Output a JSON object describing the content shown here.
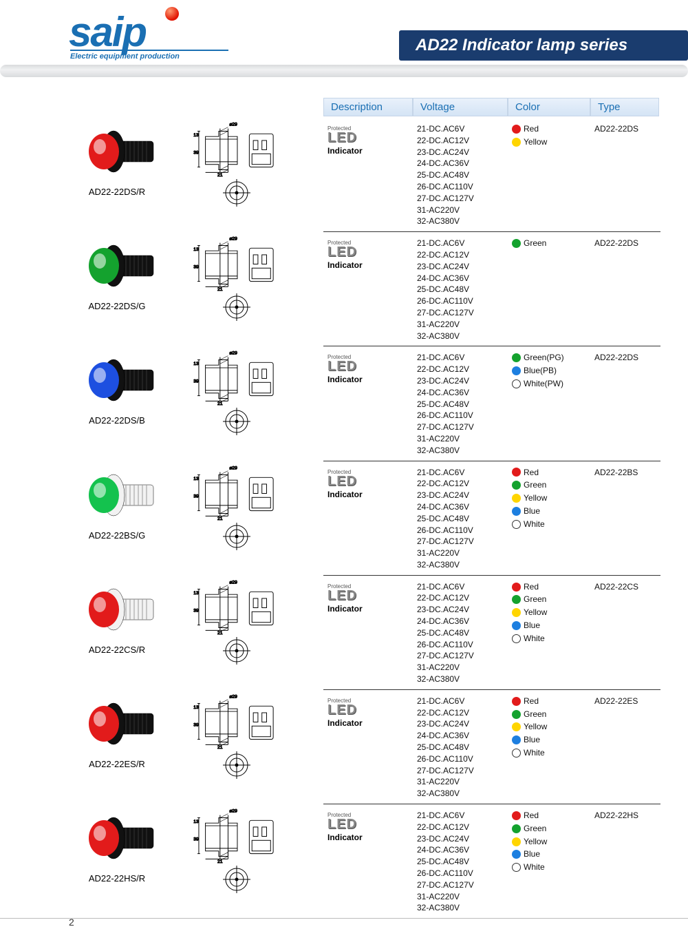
{
  "brand": {
    "logo_text": "saip",
    "tagline": "Electric equipment production",
    "logo_color": "#1a6fb3",
    "dot_color": "#e11300"
  },
  "page_title": "AD22 Indicator lamp series",
  "page_number": "2",
  "columns": {
    "description": "Description",
    "voltage": "Voltage",
    "color": "Color",
    "type": "Type"
  },
  "desc_block": {
    "small": "Protected",
    "led": "LED",
    "indicator": "Indicator"
  },
  "voltages": [
    "21-DC.AC6V",
    "22-DC.AC12V",
    "23-DC.AC24V",
    "24-DC.AC36V",
    "25-DC.AC48V",
    "26-DC.AC110V",
    "27-DC.AC127V",
    "31-AC220V",
    "32-AC380V"
  ],
  "color_swatch": {
    "Red": "#e21b1b",
    "Yellow": "#ffd500",
    "Green": "#14a22e",
    "Blue": "#1d7fe0",
    "White": "#ffffff"
  },
  "products": [
    {
      "model": "AD22-22DS/R",
      "type": "AD22-22DS",
      "body_color": "#111111",
      "lens_color": "#e21b1b",
      "colors": [
        {
          "label": "Red",
          "swatch": "#e21b1b",
          "border": false
        },
        {
          "label": "Yellow",
          "swatch": "#ffd500",
          "border": false
        }
      ]
    },
    {
      "model": "AD22-22DS/G",
      "type": "AD22-22DS",
      "body_color": "#111111",
      "lens_color": "#14a22e",
      "colors": [
        {
          "label": "Green",
          "swatch": "#14a22e",
          "border": false
        }
      ]
    },
    {
      "model": "AD22-22DS/B",
      "type": "AD22-22DS",
      "body_color": "#111111",
      "lens_color": "#1d4fe0",
      "colors": [
        {
          "label": "Green(PG)",
          "swatch": "#14a22e",
          "border": false
        },
        {
          "label": "Blue(PB)",
          "swatch": "#1d7fe0",
          "border": false
        },
        {
          "label": "White(PW)",
          "swatch": "#ffffff",
          "border": true
        }
      ]
    },
    {
      "model": "AD22-22BS/G",
      "type": "AD22-22BS",
      "body_color": "#f2f2f2",
      "lens_color": "#14c24e",
      "colors": [
        {
          "label": "Red",
          "swatch": "#e21b1b",
          "border": false
        },
        {
          "label": "Green",
          "swatch": "#14a22e",
          "border": false
        },
        {
          "label": "Yellow",
          "swatch": "#ffd500",
          "border": false
        },
        {
          "label": "Blue",
          "swatch": "#1d7fe0",
          "border": false
        },
        {
          "label": "White",
          "swatch": "#ffffff",
          "border": true
        }
      ]
    },
    {
      "model": "AD22-22CS/R",
      "type": "AD22-22CS",
      "body_color": "#f2f2f2",
      "lens_color": "#e21b1b",
      "colors": [
        {
          "label": "Red",
          "swatch": "#e21b1b",
          "border": false
        },
        {
          "label": "Green",
          "swatch": "#14a22e",
          "border": false
        },
        {
          "label": "Yellow",
          "swatch": "#ffd500",
          "border": false
        },
        {
          "label": "Blue",
          "swatch": "#1d7fe0",
          "border": false
        },
        {
          "label": "White",
          "swatch": "#ffffff",
          "border": true
        }
      ]
    },
    {
      "model": "AD22-22ES/R",
      "type": "AD22-22ES",
      "body_color": "#111111",
      "lens_color": "#e21b1b",
      "colors": [
        {
          "label": "Red",
          "swatch": "#e21b1b",
          "border": false
        },
        {
          "label": "Green",
          "swatch": "#14a22e",
          "border": false
        },
        {
          "label": "Yellow",
          "swatch": "#ffd500",
          "border": false
        },
        {
          "label": "Blue",
          "swatch": "#1d7fe0",
          "border": false
        },
        {
          "label": "White",
          "swatch": "#ffffff",
          "border": true
        }
      ]
    },
    {
      "model": "AD22-22HS/R",
      "type": "AD22-22HS",
      "body_color": "#111111",
      "lens_color": "#e21b1b",
      "colors": [
        {
          "label": "Red",
          "swatch": "#e21b1b",
          "border": false
        },
        {
          "label": "Green",
          "swatch": "#14a22e",
          "border": false
        },
        {
          "label": "Yellow",
          "swatch": "#ffd500",
          "border": false
        },
        {
          "label": "Blue",
          "swatch": "#1d7fe0",
          "border": false
        },
        {
          "label": "White",
          "swatch": "#ffffff",
          "border": true
        }
      ]
    }
  ],
  "diagram": {
    "top_dim": "⌀29",
    "left_dim_top": "13",
    "left_dim_bottom": "39",
    "bottom_dim": "21",
    "hatch_pattern": "////////"
  }
}
